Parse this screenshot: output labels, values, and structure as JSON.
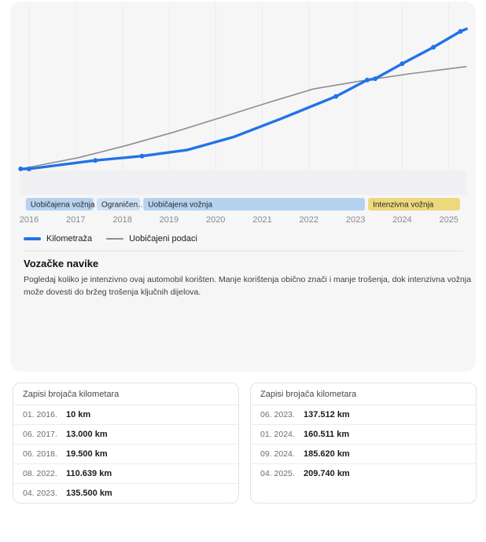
{
  "colors": {
    "accent_blue": "#2173e8",
    "usual_gray": "#8e8e93",
    "band_blue": "#b5d2ef",
    "band_blue_light": "#cfe0f5",
    "band_yellow": "#edd87b",
    "card_bg": "#f6f6f7"
  },
  "chart_data": {
    "type": "line",
    "title": "",
    "xlabel": "",
    "ylabel": "",
    "x_ticks": [
      2016,
      2017,
      2018,
      2019,
      2020,
      2021,
      2022,
      2023,
      2024,
      2025
    ],
    "x_range": [
      2015.8,
      2025.6
    ],
    "y_unit": "km",
    "grid": "vertical-faint",
    "legend_position": "bottom-left",
    "series": [
      {
        "name": "Kilometraža",
        "color_key": "accent_blue",
        "points": [
          {
            "x": 2015.82,
            "km": 0,
            "interp": true
          },
          {
            "x": 2016.0,
            "km": 10,
            "label": "01. 2016."
          },
          {
            "x": 2017.42,
            "km": 13000,
            "label": "06. 2017."
          },
          {
            "x": 2018.42,
            "km": 19500,
            "label": "06. 2018."
          },
          {
            "x": 2019.4,
            "km": 29000,
            "interp": true
          },
          {
            "x": 2020.4,
            "km": 49000,
            "interp": true
          },
          {
            "x": 2021.4,
            "km": 76500,
            "interp": true
          },
          {
            "x": 2022.58,
            "km": 110639,
            "label": "08. 2022."
          },
          {
            "x": 2023.25,
            "km": 135500,
            "label": "04. 2023."
          },
          {
            "x": 2023.42,
            "km": 137512,
            "label": "06. 2023."
          },
          {
            "x": 2024.0,
            "km": 160511,
            "label": "01. 2024."
          },
          {
            "x": 2024.67,
            "km": 185620,
            "label": "09. 2024."
          },
          {
            "x": 2025.25,
            "km": 209740,
            "label": "04. 2025."
          },
          {
            "x": 2025.38,
            "km": 213500,
            "interp": true
          }
        ]
      },
      {
        "name": "Uobičajeni podaci",
        "color_key": "usual_gray",
        "points": [
          {
            "x": 2015.82,
            "km": 0
          },
          {
            "x": 2017.05,
            "km": 17000
          },
          {
            "x": 2018.05,
            "km": 35000
          },
          {
            "x": 2019.1,
            "km": 56000
          },
          {
            "x": 2020.1,
            "km": 78000
          },
          {
            "x": 2021.1,
            "km": 100500
          },
          {
            "x": 2022.1,
            "km": 122000
          },
          {
            "x": 2023.1,
            "km": 134000
          },
          {
            "x": 2024.15,
            "km": 145000
          },
          {
            "x": 2025.37,
            "km": 156000
          }
        ]
      }
    ],
    "bands": [
      {
        "label": "Uobičajena vožnja",
        "from": 2015.93,
        "to": 2017.38,
        "color_key": "band_blue"
      },
      {
        "label": "Ograničen…",
        "from": 2017.45,
        "to": 2018.38,
        "color_key": "band_blue_light"
      },
      {
        "label": "Uobičajena vožnja",
        "from": 2018.45,
        "to": 2023.2,
        "color_key": "band_blue"
      },
      {
        "label": "Intenzivna vožnja",
        "from": 2023.27,
        "to": 2025.24,
        "color_key": "band_yellow"
      }
    ]
  },
  "legend": {
    "items": [
      {
        "label": "Kilometraža"
      },
      {
        "label": "Uobičajeni podaci"
      }
    ]
  },
  "habits": {
    "title": "Vozačke navike",
    "body": "Pogledaj koliko je intenzivno ovaj automobil korišten. Manje korištenja obično znači i manje trošenja, dok intenzivna vožnja može dovesti do bržeg trošenja ključnih dijelova."
  },
  "tables": [
    {
      "title": "Zapisi brojača kilometara",
      "rows": [
        {
          "date": "01. 2016.",
          "value": "10 km"
        },
        {
          "date": "06. 2017.",
          "value": "13.000 km"
        },
        {
          "date": "06. 2018.",
          "value": "19.500 km"
        },
        {
          "date": "08. 2022.",
          "value": "110.639 km"
        },
        {
          "date": "04. 2023.",
          "value": "135.500 km"
        }
      ]
    },
    {
      "title": "Zapisi brojača kilometara",
      "rows": [
        {
          "date": "06. 2023.",
          "value": "137.512 km"
        },
        {
          "date": "01. 2024.",
          "value": "160.511 km"
        },
        {
          "date": "09. 2024.",
          "value": "185.620 km"
        },
        {
          "date": "04. 2025.",
          "value": "209.740 km"
        }
      ]
    }
  ]
}
